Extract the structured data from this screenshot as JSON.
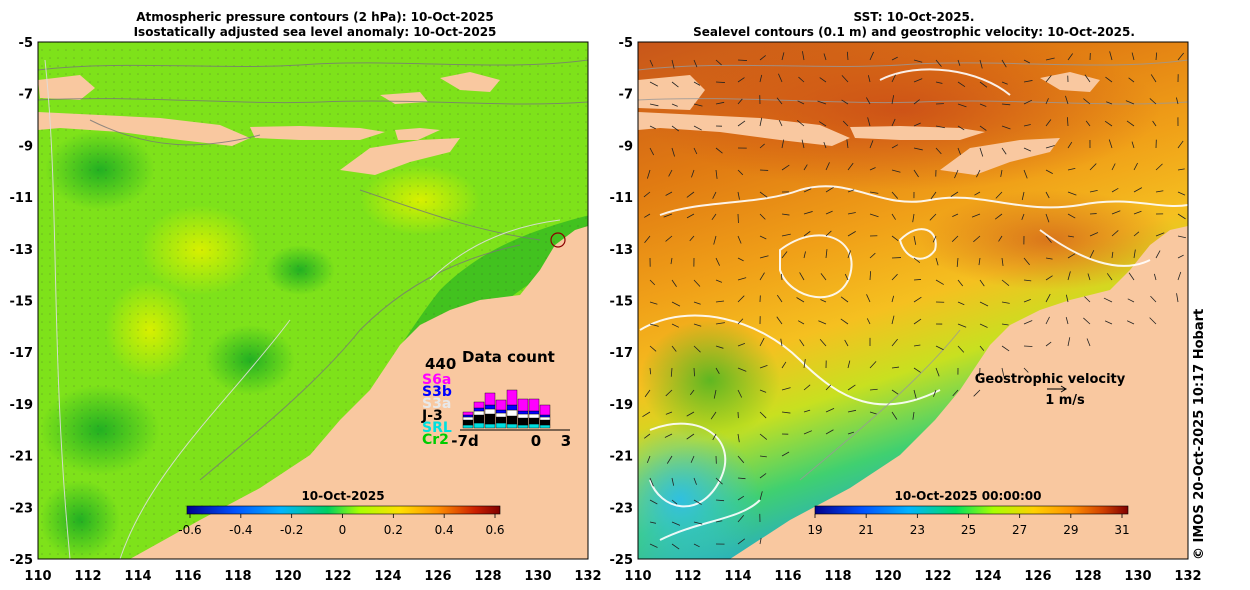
{
  "left_panel": {
    "title_line1": "Atmospheric pressure contours (2 hPa): 10-Oct-2025",
    "title_line2": "Isostatically adjusted sea level anomaly: 10-Oct-2025",
    "colorbar_title": "10-Oct-2025",
    "colorbar_labels": [
      "-0.6",
      "-0.4",
      "-0.2",
      "0",
      "0.2",
      "0.4",
      "0.6"
    ],
    "data_count": {
      "title": "Data count",
      "max_label": "440",
      "missions": [
        {
          "name": "S6a",
          "color": "#ff00ff"
        },
        {
          "name": "S3b",
          "color": "#0000ff"
        },
        {
          "name": "S3a",
          "color": "#e8e8e8"
        },
        {
          "name": "J-3",
          "color": "#000000"
        },
        {
          "name": "SRL",
          "color": "#00e0e0"
        },
        {
          "name": "Cr2",
          "color": "#00cc00"
        }
      ],
      "x_labels": [
        "-7d",
        "0",
        "3"
      ]
    }
  },
  "right_panel": {
    "title_line1": "SST: 10-Oct-2025.",
    "title_line2": "Sealevel contours (0.1 m) and geostrophic velocity: 10-Oct-2025.",
    "colorbar_title": "10-Oct-2025 00:00:00",
    "colorbar_labels": [
      "19",
      "21",
      "23",
      "25",
      "27",
      "29",
      "31"
    ],
    "velocity_legend_title": "Geostrophic velocity",
    "velocity_legend_scale": "1 m/s"
  },
  "axes": {
    "y_labels": [
      "-5",
      "-7",
      "-9",
      "-11",
      "-13",
      "-15",
      "-17",
      "-19",
      "-21",
      "-23",
      "-25"
    ],
    "x_labels": [
      "110",
      "112",
      "114",
      "116",
      "118",
      "120",
      "122",
      "124",
      "126",
      "128",
      "130",
      "132"
    ]
  },
  "credit": "© IMOS 20-Oct-2025 10:17 Hobart",
  "colors": {
    "land": "#f9c8a0",
    "sla_colormap": [
      "#00008c",
      "#0050ff",
      "#00b4ff",
      "#00e000",
      "#a8ff00",
      "#ffe000",
      "#ff9000",
      "#cc2000",
      "#800000"
    ],
    "sst_colormap": [
      "#00008c",
      "#0050ff",
      "#00b4ff",
      "#00e060",
      "#a8ff00",
      "#ffd000",
      "#ff9000",
      "#d04000",
      "#800000"
    ]
  }
}
